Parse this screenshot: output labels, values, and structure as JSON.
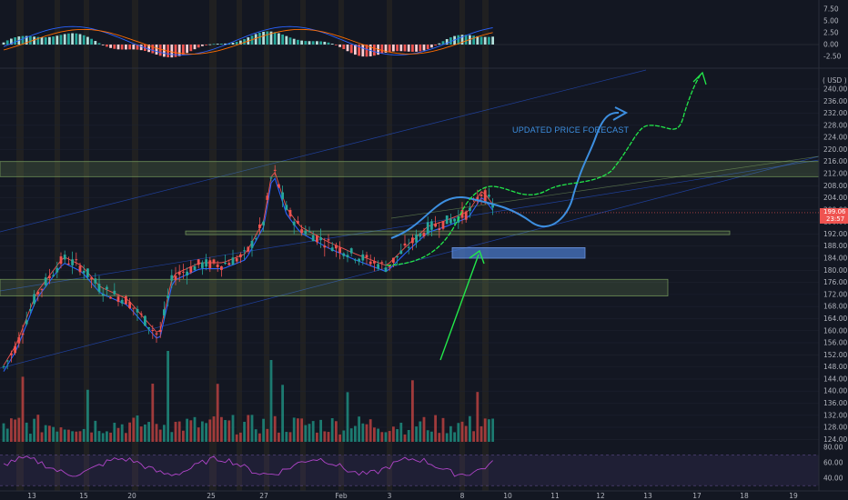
{
  "chart_data": [
    {
      "panel": "macd",
      "type": "bar",
      "y_ticks": [
        "7.50",
        "5.00",
        "2.50",
        "0.00",
        "-2.50"
      ],
      "ylim": [
        -2.5,
        7.5
      ]
    },
    {
      "panel": "price",
      "type": "candlestick",
      "currency_label": "( USD )",
      "y_ticks": [
        "240.00",
        "236.00",
        "232.00",
        "228.00",
        "224.00",
        "220.00",
        "216.00",
        "212.00",
        "208.00",
        "204.00",
        "200.00",
        "196.00",
        "192.00",
        "188.00",
        "184.00",
        "180.00",
        "176.00",
        "172.00",
        "168.00",
        "164.00",
        "160.00",
        "156.00",
        "152.00",
        "148.00",
        "144.00",
        "140.00",
        "136.00",
        "132.00",
        "128.00",
        "124.00"
      ],
      "ylim": [
        122,
        243
      ],
      "x_ticks": [
        "13",
        "15",
        "20",
        "25",
        "27",
        "Feb",
        "3",
        "8",
        "10",
        "11",
        "12",
        "13",
        "17",
        "18",
        "19"
      ],
      "last_price": "199.06",
      "countdown": "23:57",
      "annotation": "UPDATED PRICE FORECAST",
      "zones": [
        {
          "name": "upper-resistance",
          "from": 211,
          "to": 216
        },
        {
          "name": "mid-support",
          "from": 192,
          "to": 193
        },
        {
          "name": "lower-support",
          "from": 171.5,
          "to": 177
        }
      ],
      "key_level_box": {
        "from": 184,
        "to": 187.5
      },
      "colors": {
        "up": "#26a69a",
        "down": "#ef5350",
        "forecast_blue": "#3d8fe0",
        "forecast_green": "#22e84a",
        "zone": "#8fbc6a"
      }
    },
    {
      "panel": "rsi",
      "type": "line",
      "y_ticks": [
        "80.00",
        "60.00",
        "40.00"
      ],
      "ylim": [
        35,
        85
      ]
    }
  ]
}
